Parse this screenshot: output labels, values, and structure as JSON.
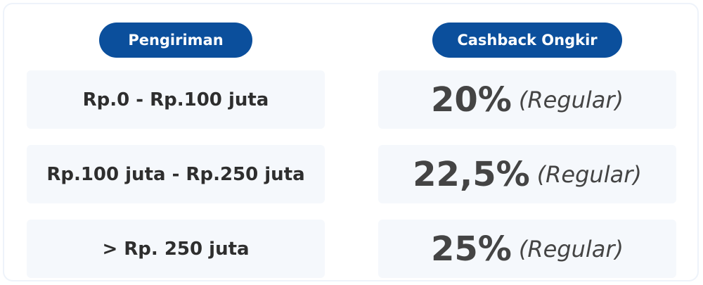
{
  "table": {
    "headers": [
      "Pengiriman",
      "Cashback Ongkir"
    ],
    "rows": [
      {
        "range": "Rp.0 - Rp.100 juta",
        "cashback": "20%",
        "note": "(Regular)"
      },
      {
        "range": "Rp.100 juta - Rp.250 juta",
        "cashback": "22,5%",
        "note": "(Regular)"
      },
      {
        "range": "> Rp. 250 juta",
        "cashback": "25%",
        "note": "(Regular)"
      }
    ]
  }
}
